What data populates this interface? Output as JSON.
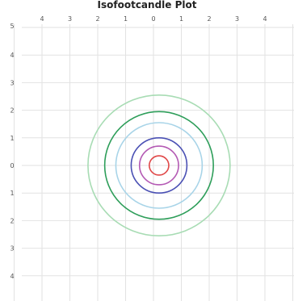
{
  "chart_data": {
    "type": "line",
    "title": "Isofootcandle Plot",
    "xlabel": "",
    "ylabel": "",
    "grid": true,
    "xlim": [
      -5,
      5
    ],
    "ylim": [
      -5,
      5
    ],
    "x_ticks": [
      -4,
      -3,
      -2,
      -1,
      0,
      1,
      2,
      3,
      4
    ],
    "x_tick_labels": [
      "4",
      "3",
      "2",
      "1",
      "0",
      "1",
      "2",
      "3",
      "4"
    ],
    "y_ticks": [
      4,
      3,
      2,
      1,
      0,
      -1,
      -2,
      -3,
      -4
    ],
    "y_tick_labels": [
      "4",
      "3",
      "2",
      "1",
      "0",
      "1",
      "2",
      "3",
      "4"
    ],
    "corner_label": "5",
    "series": [
      {
        "center": [
          0.2,
          0.0
        ],
        "radius": 2.55,
        "color": "#a8dcb4"
      },
      {
        "center": [
          0.2,
          0.0
        ],
        "radius": 1.95,
        "color": "#2e9e5a"
      },
      {
        "center": [
          0.2,
          0.0
        ],
        "radius": 1.55,
        "color": "#a8d4e8"
      },
      {
        "center": [
          0.2,
          0.0
        ],
        "radius": 1.0,
        "color": "#4a50b4"
      },
      {
        "center": [
          0.2,
          0.0
        ],
        "radius": 0.7,
        "color": "#b45ab4"
      },
      {
        "center": [
          0.2,
          0.0
        ],
        "radius": 0.35,
        "color": "#e04848"
      }
    ]
  }
}
